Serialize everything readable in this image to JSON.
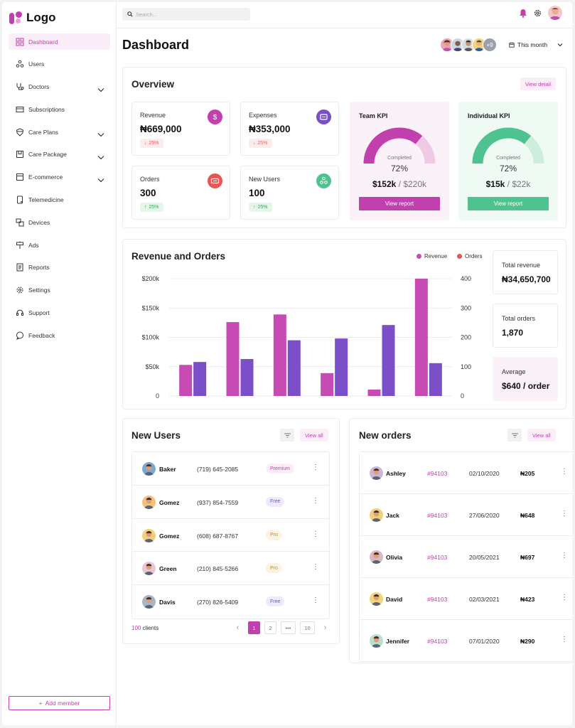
{
  "app": {
    "logo": "Logo"
  },
  "sidebar": {
    "items": [
      {
        "label": "Dashboard",
        "icon": "dashboard-icon",
        "active": true
      },
      {
        "label": "Users",
        "icon": "users-icon"
      },
      {
        "label": "Doctors",
        "icon": "stethoscope-icon",
        "expandable": true
      },
      {
        "label": "Subscriptions",
        "icon": "card-icon"
      },
      {
        "label": "Care Plans",
        "icon": "shield-heart-icon",
        "expandable": true
      },
      {
        "label": "Care Package",
        "icon": "package-icon",
        "expandable": true
      },
      {
        "label": "E-commerce",
        "icon": "shop-icon",
        "expandable": true
      },
      {
        "label": "Telemedicine",
        "icon": "phone-device-icon"
      },
      {
        "label": "Devices",
        "icon": "devices-icon"
      },
      {
        "label": "Ads",
        "icon": "signpost-icon"
      },
      {
        "label": "Reports",
        "icon": "report-icon"
      },
      {
        "label": "Settings",
        "icon": "gear-icon"
      },
      {
        "label": "Support",
        "icon": "headset-icon"
      },
      {
        "label": "Feedback",
        "icon": "chat-icon"
      }
    ],
    "add_member": "Add member"
  },
  "topbar": {
    "search_placeholder": "Search..."
  },
  "header": {
    "title": "Dashboard",
    "avatar_more": "+9",
    "period": "This month"
  },
  "overview": {
    "title": "Overview",
    "view_detail": "View detail",
    "stats": [
      {
        "label": "Revenue",
        "value": "₦669,000",
        "change": "25%",
        "trend": "down",
        "icon_color": "#c23fae",
        "icon": "dollar-icon"
      },
      {
        "label": "Expenses",
        "value": "₦353,000",
        "change": "25%",
        "trend": "down",
        "icon_color": "#7a4fc7",
        "icon": "wallet-icon"
      },
      {
        "label": "Orders",
        "value": "300",
        "change": "25%",
        "trend": "up",
        "icon_color": "#e35757",
        "icon": "ticket-icon"
      },
      {
        "label": "New Users",
        "value": "100",
        "change": "25%",
        "trend": "up",
        "icon_color": "#4fc38f",
        "icon": "users-icon"
      }
    ],
    "team_kpi": {
      "title": "Team KPI",
      "completed_label": "Completed",
      "percent": "72%",
      "progress": 0.72,
      "current": "$152k",
      "total": " / $220k",
      "button": "View report",
      "color": "#c23fae",
      "track": "#f0c9e6",
      "bg": "#fbf1f9"
    },
    "individual_kpi": {
      "title": "Individual KPI",
      "completed_label": "Completed",
      "percent": "72%",
      "progress": 0.72,
      "current": "$15k",
      "total": " / $22k",
      "button": "View report",
      "color": "#4fc38f",
      "track": "#cdeedd",
      "bg": "#eefaf3"
    }
  },
  "revenue_orders": {
    "title": "Revenue and Orders",
    "legend_revenue": "Revenue",
    "legend_orders": "Orders",
    "total_revenue_label": "Total revenue",
    "total_revenue": "₦34,650,700",
    "total_orders_label": "Total orders",
    "total_orders": "1,870",
    "average_label": "Average",
    "average": "$640 / order"
  },
  "chart_data": {
    "type": "bar",
    "categories": [
      "",
      "",
      "",
      "",
      "",
      ""
    ],
    "series": [
      {
        "name": "Revenue",
        "axis": "left",
        "color": "#c64bb3",
        "values": [
          53000,
          126000,
          139000,
          39000,
          11000,
          200000
        ]
      },
      {
        "name": "Orders",
        "axis": "right",
        "color": "#7a4fc7",
        "values": [
          116,
          126,
          190,
          196,
          242,
          112
        ]
      }
    ],
    "y_left_ticks": [
      "$200k",
      "$150k",
      "$100k",
      "$50k",
      "0"
    ],
    "y_right_ticks": [
      "400",
      "300",
      "200",
      "100",
      "0"
    ],
    "ylim_left": [
      0,
      200000
    ],
    "ylim_right": [
      0,
      400
    ],
    "grid": true
  },
  "new_users": {
    "title": "New Users",
    "view_all": "View all",
    "rows": [
      {
        "name": "Baker",
        "phone": "(719) 645-2085",
        "plan": "Premium",
        "plan_color": "#c23fae",
        "plan_bg": "#fbeef8",
        "face": "#7ba9d6"
      },
      {
        "name": "Gomez",
        "phone": "(937) 854-7559",
        "plan": "Free",
        "plan_color": "#7a4fc7",
        "plan_bg": "#efeafb",
        "face": "#f2c27a"
      },
      {
        "name": "Gomez",
        "phone": "(608) 687-8767",
        "plan": "Pro",
        "plan_color": "#c58a2a",
        "plan_bg": "#fdf3e3",
        "face": "#f2cf7a"
      },
      {
        "name": "Green",
        "phone": "(210) 845-5266",
        "plan": "Pro",
        "plan_color": "#c58a2a",
        "plan_bg": "#fdf3e3",
        "face": "#e9c6d6"
      },
      {
        "name": "Davis",
        "phone": "(270) 826-5409",
        "plan": "Free",
        "plan_color": "#7a4fc7",
        "plan_bg": "#efeafb",
        "face": "#aab4c8"
      }
    ],
    "count": "100",
    "count_label": " clients",
    "pages": [
      "1",
      "2",
      "•••",
      "10"
    ]
  },
  "new_orders": {
    "title": "New orders",
    "view_all": "View all",
    "rows": [
      {
        "name": "Ashley",
        "id": "#94103",
        "date": "02/10/2020",
        "amount": "₦205",
        "face": "#c9b8d8"
      },
      {
        "name": "Jack",
        "id": "#94103",
        "date": "27/06/2020",
        "amount": "₦648",
        "face": "#f2cf7a"
      },
      {
        "name": "Olivia",
        "id": "#94103",
        "date": "20/05/2021",
        "amount": "₦697",
        "face": "#d6b9c4"
      },
      {
        "name": "David",
        "id": "#94103",
        "date": "02/03/2021",
        "amount": "₦423",
        "face": "#f2d57a"
      },
      {
        "name": "Jennifer",
        "id": "#94103",
        "date": "07/01/2020",
        "amount": "₦290",
        "face": "#b9e0cf"
      }
    ]
  }
}
